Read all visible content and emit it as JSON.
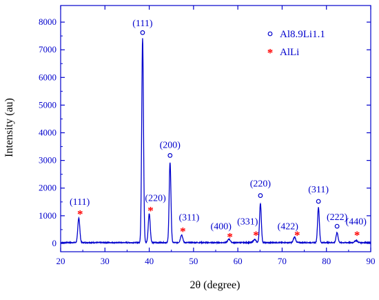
{
  "chart_data": {
    "type": "line",
    "xlabel": "2θ (degree)",
    "ylabel": "Intensity (au)",
    "xlim": [
      20,
      90
    ],
    "ylim": [
      -300,
      8600
    ],
    "x_ticks": [
      20,
      30,
      40,
      50,
      60,
      70,
      80,
      90
    ],
    "y_ticks": [
      0,
      1000,
      2000,
      3000,
      4000,
      5000,
      6000,
      7000,
      8000
    ],
    "grid": false,
    "legend_position": "top-right",
    "colors": {
      "line": "#0000cc",
      "axis": "#0000cc",
      "text": "#0000cc",
      "star": "#ff0000"
    },
    "baseline": 30,
    "peaks": [
      {
        "x": 24.1,
        "y": 900,
        "width": 0.22
      },
      {
        "x": 38.5,
        "y": 7400,
        "width": 0.2
      },
      {
        "x": 40.0,
        "y": 1050,
        "width": 0.22
      },
      {
        "x": 44.7,
        "y": 2900,
        "width": 0.2
      },
      {
        "x": 47.3,
        "y": 280,
        "width": 0.25
      },
      {
        "x": 58.0,
        "y": 120,
        "width": 0.3
      },
      {
        "x": 63.8,
        "y": 110,
        "width": 0.3
      },
      {
        "x": 65.1,
        "y": 1420,
        "width": 0.2
      },
      {
        "x": 72.8,
        "y": 200,
        "width": 0.25
      },
      {
        "x": 78.2,
        "y": 1280,
        "width": 0.2
      },
      {
        "x": 82.4,
        "y": 360,
        "width": 0.22
      },
      {
        "x": 86.7,
        "y": 80,
        "width": 0.3
      }
    ],
    "series": [
      {
        "name": "Al8.9Li1.1",
        "marker": "circle",
        "points": [
          [
            38.5,
            7620
          ],
          [
            44.7,
            3180
          ],
          [
            65.1,
            1730
          ],
          [
            78.2,
            1520
          ],
          [
            82.4,
            620
          ]
        ]
      },
      {
        "name": "AlLi",
        "marker": "star",
        "points": [
          [
            24.4,
            1100
          ],
          [
            40.3,
            1220
          ],
          [
            47.6,
            470
          ],
          [
            58.2,
            270
          ],
          [
            64.1,
            330
          ],
          [
            73.4,
            330
          ],
          [
            86.9,
            330
          ]
        ]
      }
    ],
    "annotations": [
      {
        "text": "(111)",
        "x": 38.5,
        "y": 7850
      },
      {
        "text": "(200)",
        "x": 44.7,
        "y": 3450
      },
      {
        "text": "(220)",
        "x": 65.1,
        "y": 2050
      },
      {
        "text": "(311)",
        "x": 78.2,
        "y": 1850
      },
      {
        "text": "(222)",
        "x": 82.4,
        "y": 850
      },
      {
        "text": "(111)",
        "x": 24.3,
        "y": 1400
      },
      {
        "text": "(220)",
        "x": 41.4,
        "y": 1530
      },
      {
        "text": "(311)",
        "x": 49.0,
        "y": 840
      },
      {
        "text": "(400)",
        "x": 56.2,
        "y": 510
      },
      {
        "text": "(331)",
        "x": 62.2,
        "y": 680
      },
      {
        "text": "(422)",
        "x": 71.3,
        "y": 510
      },
      {
        "text": "(440)",
        "x": 86.7,
        "y": 680
      }
    ]
  }
}
